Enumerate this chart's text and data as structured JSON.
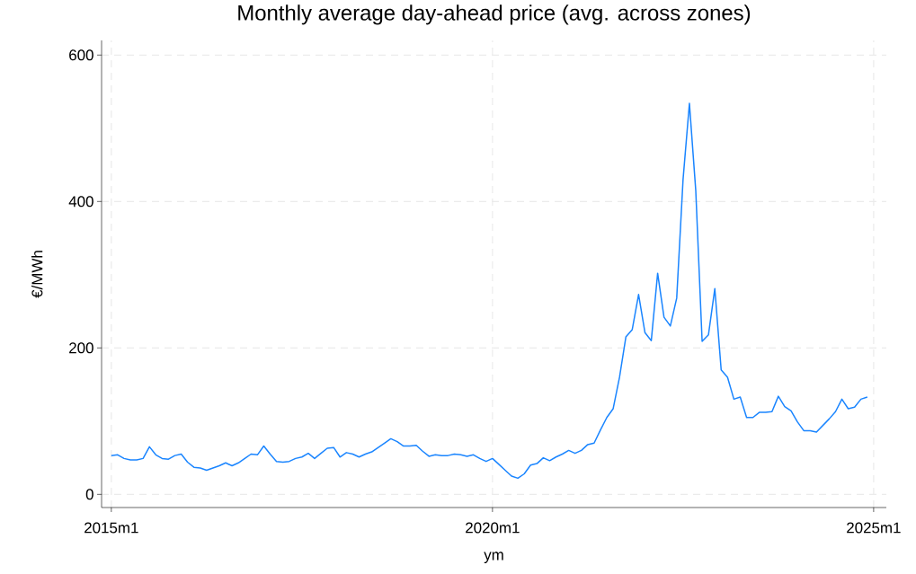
{
  "chart_data": {
    "type": "line",
    "title": "Monthly average day-ahead price (avg. across zones)",
    "xlabel": "ym",
    "ylabel": "€/MWh",
    "x": [
      "2015-01",
      "2015-02",
      "2015-03",
      "2015-04",
      "2015-05",
      "2015-06",
      "2015-07",
      "2015-08",
      "2015-09",
      "2015-10",
      "2015-11",
      "2015-12",
      "2016-01",
      "2016-02",
      "2016-03",
      "2016-04",
      "2016-05",
      "2016-06",
      "2016-07",
      "2016-08",
      "2016-09",
      "2016-10",
      "2016-11",
      "2016-12",
      "2017-01",
      "2017-02",
      "2017-03",
      "2017-04",
      "2017-05",
      "2017-06",
      "2017-07",
      "2017-08",
      "2017-09",
      "2017-10",
      "2017-11",
      "2017-12",
      "2018-01",
      "2018-02",
      "2018-03",
      "2018-04",
      "2018-05",
      "2018-06",
      "2018-07",
      "2018-08",
      "2018-09",
      "2018-10",
      "2018-11",
      "2018-12",
      "2019-01",
      "2019-02",
      "2019-03",
      "2019-04",
      "2019-05",
      "2019-06",
      "2019-07",
      "2019-08",
      "2019-09",
      "2019-10",
      "2019-11",
      "2019-12",
      "2020-01",
      "2020-02",
      "2020-03",
      "2020-04",
      "2020-05",
      "2020-06",
      "2020-07",
      "2020-08",
      "2020-09",
      "2020-10",
      "2020-11",
      "2020-12",
      "2021-01",
      "2021-02",
      "2021-03",
      "2021-04",
      "2021-05",
      "2021-06",
      "2021-07",
      "2021-08",
      "2021-09",
      "2021-10",
      "2021-11",
      "2021-12",
      "2022-01",
      "2022-02",
      "2022-03",
      "2022-04",
      "2022-05",
      "2022-06",
      "2022-07",
      "2022-08",
      "2022-09",
      "2022-10",
      "2022-11",
      "2022-12",
      "2023-01",
      "2023-02",
      "2023-03",
      "2023-04",
      "2023-05",
      "2023-06",
      "2023-07",
      "2023-08",
      "2023-09",
      "2023-10",
      "2023-11",
      "2023-12",
      "2024-01",
      "2024-02",
      "2024-03",
      "2024-04",
      "2024-05",
      "2024-06",
      "2024-07",
      "2024-08",
      "2024-09",
      "2024-10",
      "2024-11",
      "2024-12"
    ],
    "series": [
      {
        "color": "#1a85ff",
        "values": [
          53,
          54,
          49,
          47,
          47,
          49,
          65,
          54,
          49,
          48,
          53,
          55,
          44,
          37,
          36,
          33,
          36,
          39,
          43,
          39,
          43,
          49,
          55,
          54,
          66,
          55,
          45,
          44,
          45,
          49,
          51,
          56,
          49,
          56,
          63,
          64,
          51,
          57,
          55,
          51,
          55,
          58,
          64,
          70,
          76,
          72,
          66,
          66,
          67,
          59,
          52,
          54,
          53,
          53,
          55,
          54,
          52,
          54,
          49,
          45,
          49,
          41,
          33,
          25,
          22,
          28,
          40,
          42,
          50,
          46,
          51,
          55,
          60,
          56,
          60,
          68,
          70,
          88,
          105,
          117,
          160,
          215,
          225,
          273,
          221,
          210,
          302,
          242,
          230,
          268,
          430,
          534,
          415,
          209,
          218,
          281,
          170,
          160,
          130,
          133,
          105,
          105,
          112,
          112,
          113,
          134,
          120,
          114,
          99,
          87,
          87,
          85,
          94,
          103,
          113,
          130,
          117,
          119,
          130,
          133
        ]
      }
    ],
    "xlim": [
      "2014-11-15",
      "2025-03"
    ],
    "ylim": [
      -18,
      620
    ],
    "xticks": [
      {
        "value": "2015-01",
        "label": "2015m1"
      },
      {
        "value": "2020-01",
        "label": "2020m1"
      },
      {
        "value": "2025-01",
        "label": "2025m1"
      }
    ],
    "yticks": [
      0,
      200,
      400,
      600
    ],
    "grid": true,
    "marker": "none",
    "line_style": "solid"
  }
}
